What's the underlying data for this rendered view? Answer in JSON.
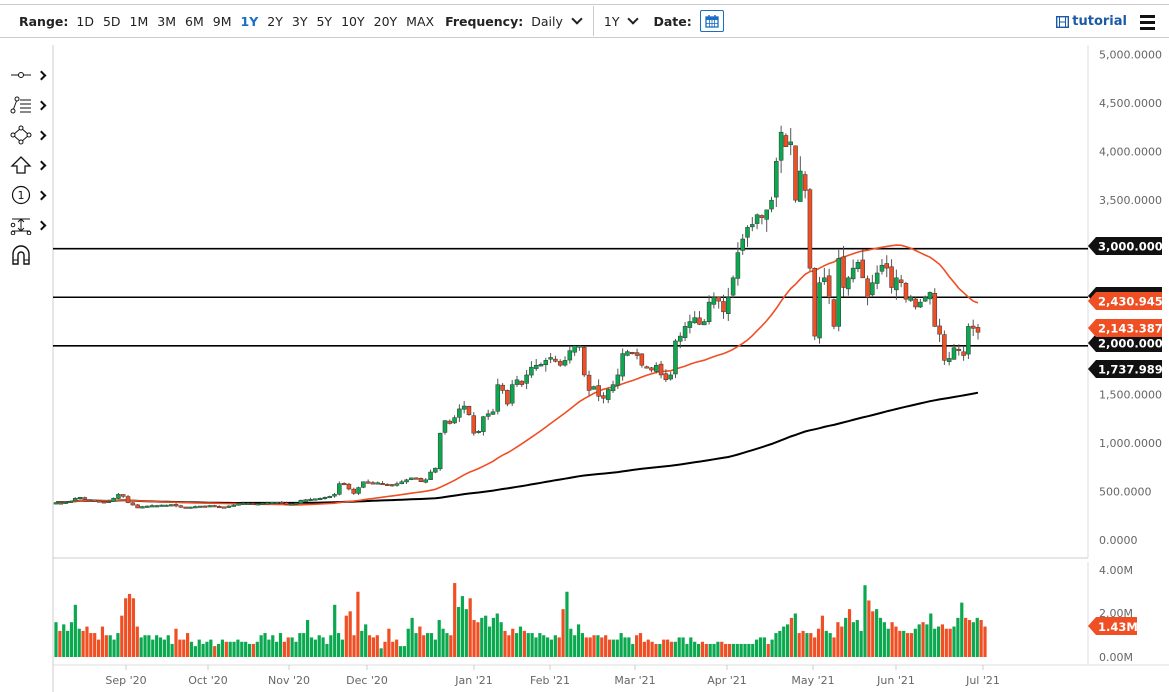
{
  "toolbar": {
    "range_label": "Range:",
    "ranges": [
      "1D",
      "5D",
      "1M",
      "3M",
      "6M",
      "9M",
      "1Y",
      "2Y",
      "3Y",
      "5Y",
      "10Y",
      "20Y",
      "MAX"
    ],
    "active_range": "1Y",
    "frequency_label": "Frequency:",
    "frequency_value": "Daily",
    "period_value": "1Y",
    "date_label": "Date:",
    "tutorial_label": "tutorial",
    "icons": {
      "calendar": "calendar-icon",
      "tutorial": "film-icon",
      "menu": "hamburger-menu-icon"
    }
  },
  "drawing_tools": [
    {
      "name": "line-tool",
      "icon": "line-segment-icon"
    },
    {
      "name": "fibonacci-tool",
      "icon": "fib-retracement-icon"
    },
    {
      "name": "shape-tool",
      "icon": "polygon-icon"
    },
    {
      "name": "arrow-tool",
      "icon": "arrow-up-icon"
    },
    {
      "name": "annotation-tool",
      "icon": "numbered-circle-icon"
    },
    {
      "name": "measure-tool",
      "icon": "measure-icon"
    },
    {
      "name": "magnet-tool",
      "icon": "magnet-icon"
    }
  ],
  "colors": {
    "up": "#0aa84f",
    "down": "#f04e23",
    "ma50": "#f04e23",
    "ma200": "#000000",
    "hline": "#000000",
    "axis_text": "#666666",
    "label_dark": "#111111",
    "label_red": "#f04e23"
  },
  "chart_data": {
    "type": "candlestick",
    "title": "",
    "xlabel": "",
    "ylabel": "",
    "ylim": [
      0,
      5000
    ],
    "y_ticks": [
      "5,000.0000",
      "4,500.0000",
      "4,000.0000",
      "3,500.0000",
      "3,000.0000",
      "2,500.0000",
      "2,000.0000",
      "1,500.0000",
      "1,000.0000",
      "500.0000",
      "0.0000"
    ],
    "x_ticks": [
      "Sep '20",
      "Oct '20",
      "Nov '20",
      "Dec '20",
      "Jan '21",
      "Feb '21",
      "Mar '21",
      "Apr '21",
      "May '21",
      "Jun '21",
      "Jul '21"
    ],
    "horizontal_lines": [
      3000,
      2500,
      2000
    ],
    "price_labels": [
      {
        "value": "3,000.0000",
        "price": 3000,
        "style": "dark"
      },
      {
        "value": "2,500.0000",
        "price": 2500,
        "style": "dark"
      },
      {
        "value": "2,430.9458",
        "price": 2430.9458,
        "style": "red",
        "series": "MA 50"
      },
      {
        "value": "2,143.3872",
        "price": 2143.3872,
        "style": "red",
        "series": "Last price"
      },
      {
        "value": "2,000.0000",
        "price": 2000,
        "style": "dark"
      },
      {
        "value": "1,737.9896",
        "price": 1737.9896,
        "style": "dark",
        "series": "MA 200"
      }
    ],
    "closes_monthly_approx": {
      "Aug '20": 390,
      "Sep '20": 360,
      "Oct '20": 380,
      "Nov '20": 500,
      "Dec '20": 740,
      "Jan '21": 1310,
      "Feb '21": 1420,
      "Mar '21": 1920,
      "Apr '21": 2770,
      "May '21": 2710,
      "Jun '21": 2270,
      "Jul '21 (last)": 2143.39
    },
    "series": [
      {
        "name": "Price",
        "closes": [
          385,
          384,
          390,
          400,
          430,
          440,
          420,
          410,
          400,
          395,
          390,
          400,
          430,
          470,
          450,
          385,
          360,
          330,
          345,
          350,
          355,
          355,
          360,
          360,
          365,
          350,
          340,
          335,
          340,
          345,
          350,
          350,
          355,
          345,
          345,
          340,
          350,
          360,
          375,
          380,
          380,
          375,
          375,
          380,
          385,
          390,
          390,
          380,
          375,
          375,
          380,
          410,
          415,
          420,
          425,
          430,
          440,
          450,
          470,
          580,
          570,
          525,
          480,
          540,
          600,
          595,
          590,
          590,
          580,
          570,
          565,
          580,
          600,
          620,
          640,
          635,
          600,
          620,
          700,
          740,
          1100,
          1230,
          1200,
          1260,
          1350,
          1380,
          1290,
          1100,
          1120,
          1270,
          1300,
          1320,
          1600,
          1540,
          1400,
          1600,
          1650,
          1600,
          1700,
          1780,
          1800,
          1810,
          1850,
          1880,
          1840,
          1800,
          1850,
          1950,
          2000,
          2000,
          1700,
          1540,
          1580,
          1480,
          1460,
          1550,
          1600,
          1700,
          1920,
          1940,
          1930,
          1900,
          1800,
          1780,
          1750,
          1800,
          1700,
          1650,
          1700,
          2050,
          2100,
          2200,
          2250,
          2290,
          2220,
          2250,
          2450,
          2500,
          2460,
          2350,
          2500,
          2700,
          2960,
          3100,
          3220,
          3250,
          3350,
          3320,
          3400,
          3500,
          3900,
          4200,
          4050,
          4100,
          3500,
          3800,
          3600,
          2800,
          2100,
          2650,
          2700,
          2500,
          2200,
          2900,
          2600,
          2700,
          2800,
          2860,
          2700,
          2500,
          2650,
          2750,
          2830,
          2800,
          2600,
          2700,
          2650,
          2480,
          2500,
          2400,
          2450,
          2500,
          2550,
          2200,
          2120,
          1850,
          1870,
          1980,
          1950,
          1900,
          2200,
          2180,
          2140
        ],
        "color_rule": "green if close >= previous close else red"
      },
      {
        "name": "MA 50",
        "last": 2430.9458,
        "color": "#f04e23"
      },
      {
        "name": "MA 200",
        "last": 1737.9896,
        "color": "#000000"
      }
    ]
  },
  "volume_chart": {
    "type": "bar",
    "ylim": [
      0,
      4000000
    ],
    "y_ticks": [
      "4.00M",
      "2.00M",
      "0.00M"
    ],
    "last_value_label": "1.43M",
    "values_m": [
      1.6,
      1.2,
      1.5,
      1.2,
      1.6,
      2.4,
      1.3,
      1.2,
      1.4,
      1.1,
      1.1,
      0.8,
      1.4,
      1.0,
      1.0,
      0.8,
      1.1,
      1.9,
      2.7,
      2.9,
      2.7,
      1.4,
      0.9,
      1.0,
      1.0,
      0.8,
      1.0,
      0.9,
      0.8,
      1.0,
      0.6,
      1.3,
      0.8,
      0.8,
      1.1,
      0.7,
      0.5,
      0.8,
      0.6,
      0.7,
      0.8,
      0.5,
      0.6,
      0.8,
      0.7,
      0.7,
      0.7,
      0.8,
      0.7,
      0.7,
      0.6,
      0.6,
      0.7,
      1.0,
      1.1,
      0.8,
      1.0,
      0.7,
      1.1,
      0.7,
      0.9,
      0.9,
      0.7,
      1.1,
      1.1,
      1.7,
      0.9,
      0.8,
      1.0,
      0.9,
      0.6,
      1.0,
      2.4,
      1.1,
      0.8,
      1.9,
      2.1,
      1.0,
      3.0,
      1.2,
      1.5,
      1.0,
      0.9,
      1.0,
      0.4,
      0.7,
      1.3,
      0.7,
      0.8,
      0.5,
      0.5,
      1.3,
      1.8,
      1.1,
      1.4,
      1.0,
      1.1,
      1.1,
      0.8,
      1.7,
      1.3,
      1.1,
      1.0,
      3.4,
      2.3,
      2.8,
      2.2,
      2.7,
      1.7,
      1.6,
      1.8,
      1.9,
      1.4,
      1.8,
      2.0,
      1.6,
      1.2,
      1.0,
      1.3,
      1.1,
      1.4,
      1.2,
      1.1,
      1.1,
      0.9,
      1.1,
      1.0,
      0.9,
      0.8,
      1.0,
      0.9,
      2.2,
      3.0,
      1.3,
      1.0,
      1.5,
      1.1,
      0.9,
      0.9,
      1.0,
      1.0,
      0.9,
      1.0,
      0.8,
      0.8,
      0.8,
      1.1,
      0.9,
      0.9,
      0.6,
      1.0,
      1.1,
      0.7,
      0.8,
      0.7,
      0.6,
      0.6,
      0.8,
      0.8,
      0.7,
      0.7,
      0.9,
      0.9,
      0.6,
      0.9,
      0.7,
      0.6,
      0.7,
      0.6,
      0.6,
      0.6,
      0.7,
      0.7,
      0.6,
      0.6,
      0.6,
      0.6,
      0.6,
      0.6,
      0.6,
      0.6,
      0.8,
      0.9,
      0.9,
      0.6,
      0.8,
      1.1,
      1.2,
      1.4,
      1.5,
      1.8,
      2.0,
      1.1,
      1.2,
      1.1,
      1.1,
      0.9,
      1.3,
      1.9,
      1.2,
      1.1,
      0.9,
      1.6,
      1.4,
      1.8,
      2.2,
      1.6,
      1.7,
      1.2,
      3.3,
      2.6,
      2.1,
      2.2,
      1.8,
      1.6,
      1.3,
      1.6,
      1.4,
      1.2,
      1.2,
      1.1,
      1.1,
      1.3,
      1.5,
      1.6,
      1.5,
      2.0,
      1.3,
      1.4,
      1.5,
      1.3,
      1.3,
      1.4,
      1.8,
      2.5,
      1.8,
      1.7,
      1.6,
      1.8,
      1.7,
      1.4
    ]
  }
}
